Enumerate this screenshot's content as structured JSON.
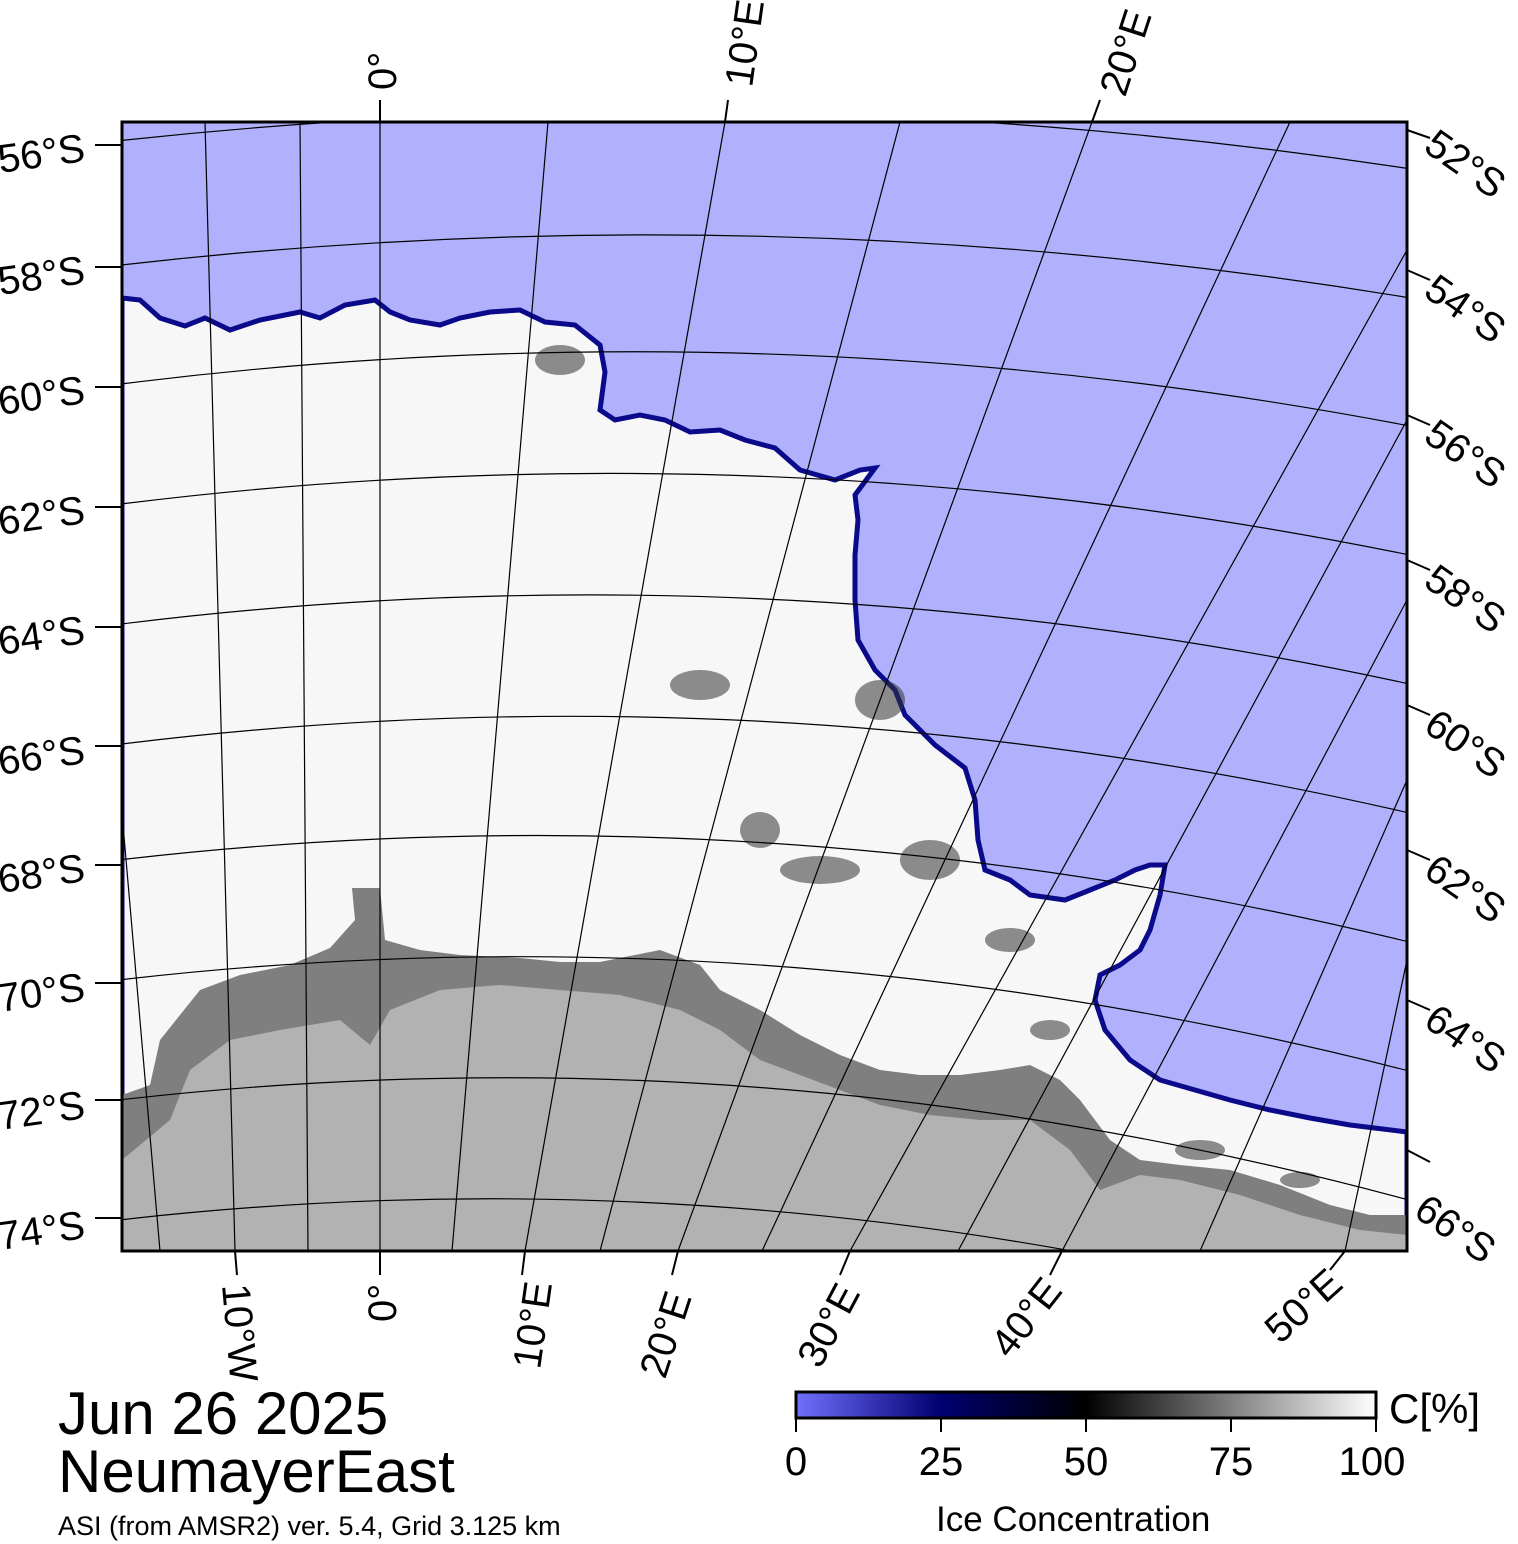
{
  "map": {
    "date": "Jun 26 2025",
    "region": "NeumayerEast",
    "source": "ASI (from AMSR2) ver. 5.4,  Grid 3.125 km",
    "colors": {
      "open_water": "#b0b0fc",
      "ice_full": "#ffffff",
      "land_ice_shelf": "#7f7f7f",
      "land": "#b2b2b2",
      "ice_edge": "#0a0a8a",
      "grid_line": "#000000"
    },
    "lat_labels_left": [
      "56°S",
      "58°S",
      "60°S",
      "62°S",
      "64°S",
      "66°S",
      "68°S",
      "70°S",
      "72°S",
      "74°S"
    ],
    "lat_labels_right": [
      "52°S",
      "54°S",
      "56°S",
      "58°S",
      "60°S",
      "62°S",
      "64°S",
      "66°S"
    ],
    "lon_labels_top": [
      "0°",
      "10°E",
      "20°E"
    ],
    "lon_labels_bottom": [
      "10°W",
      "0°",
      "10°E",
      "20°E",
      "30°E",
      "40°E",
      "50°E"
    ]
  },
  "colorbar": {
    "title": "Ice Concentration",
    "unit": "C[%]",
    "ticks": [
      "0",
      "25",
      "50",
      "75",
      "100"
    ],
    "range": [
      0,
      100
    ]
  }
}
